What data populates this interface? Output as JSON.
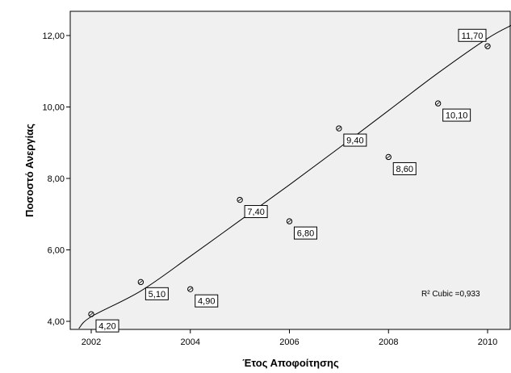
{
  "chart_data": {
    "type": "scatter",
    "xlabel": "Έτος Αποφοίτησης",
    "ylabel": "Ποσοστό Ανεργίας",
    "xlim": [
      2001.75,
      2010.5
    ],
    "ylim": [
      3.8,
      12.3
    ],
    "x_ticks": [
      2002,
      2004,
      2006,
      2008,
      2010
    ],
    "x_tick_labels": [
      "2002",
      "2004",
      "2006",
      "2008",
      "2010"
    ],
    "y_ticks": [
      4,
      6,
      8,
      10,
      12
    ],
    "y_tick_labels": [
      "4,00",
      "6,00",
      "8,00",
      "10,00",
      "12,00"
    ],
    "points": [
      {
        "x": 2002,
        "y": 4.2,
        "label": "4,20"
      },
      {
        "x": 2003,
        "y": 5.1,
        "label": "5,10"
      },
      {
        "x": 2004,
        "y": 4.9,
        "label": "4,90"
      },
      {
        "x": 2005,
        "y": 7.4,
        "label": "7,40"
      },
      {
        "x": 2006,
        "y": 6.8,
        "label": "6,80"
      },
      {
        "x": 2007,
        "y": 9.4,
        "label": "9,40"
      },
      {
        "x": 2008,
        "y": 8.6,
        "label": "8,60"
      },
      {
        "x": 2009,
        "y": 10.1,
        "label": "10,10"
      },
      {
        "x": 2010,
        "y": 11.7,
        "label": "11,70"
      }
    ],
    "fit_curve": {
      "type": "cubic",
      "points": [
        {
          "x": 2001.75,
          "y": 3.8
        },
        {
          "x": 2002,
          "y": 4.13
        },
        {
          "x": 2003,
          "y": 4.85
        },
        {
          "x": 2004,
          "y": 5.82
        },
        {
          "x": 2005,
          "y": 6.82
        },
        {
          "x": 2006,
          "y": 7.82
        },
        {
          "x": 2007,
          "y": 8.85
        },
        {
          "x": 2008,
          "y": 9.9
        },
        {
          "x": 2009,
          "y": 10.95
        },
        {
          "x": 2010,
          "y": 11.92
        },
        {
          "x": 2010.5,
          "y": 12.3
        }
      ]
    },
    "annotation": "R² Cubic =0,933",
    "grid": false,
    "colors": {
      "plot_background": "#f0f0f0",
      "frame": "#000000",
      "curve": "#000000",
      "marker": "#000000",
      "label_box": "#ffffff"
    }
  }
}
